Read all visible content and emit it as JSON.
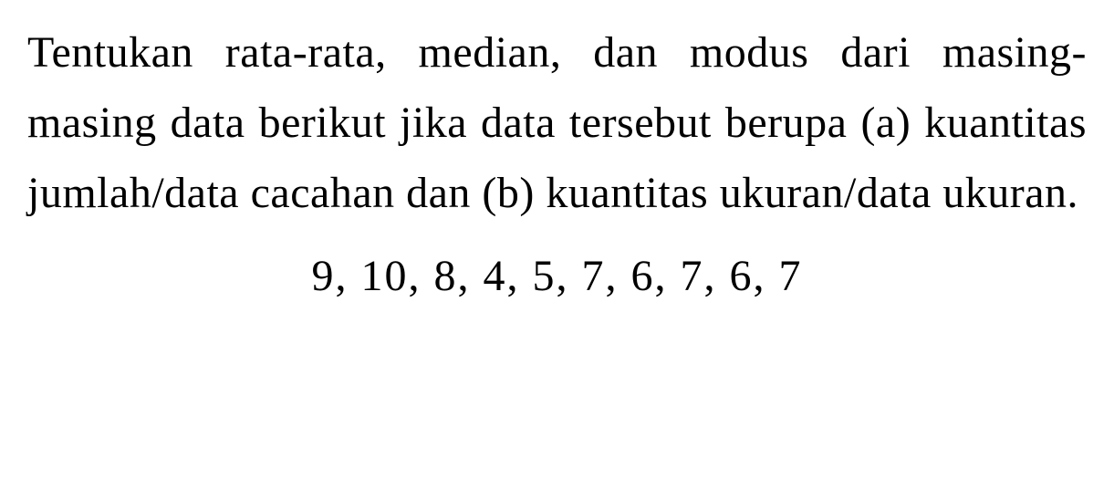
{
  "paragraph": {
    "text": "Tentukan rata-rata, median, dan modus dari masing-masing data berikut jika data tersebut berupa (a) kuantitas jumlah/data cacahan dan (b) kuantitas ukuran/data ukuran.",
    "font_size": 48,
    "font_family": "Times New Roman, serif",
    "color": "#000000",
    "background_color": "#ffffff",
    "text_align": "justify",
    "line_height": 1.6
  },
  "data_values": {
    "text": "9, 10, 8, 4, 5, 7, 6, 7, 6, 7",
    "values": [
      9,
      10,
      8,
      4,
      5,
      7,
      6,
      7,
      6,
      7
    ],
    "font_size": 48,
    "color": "#000000",
    "text_align": "center",
    "letter_spacing": 2
  }
}
